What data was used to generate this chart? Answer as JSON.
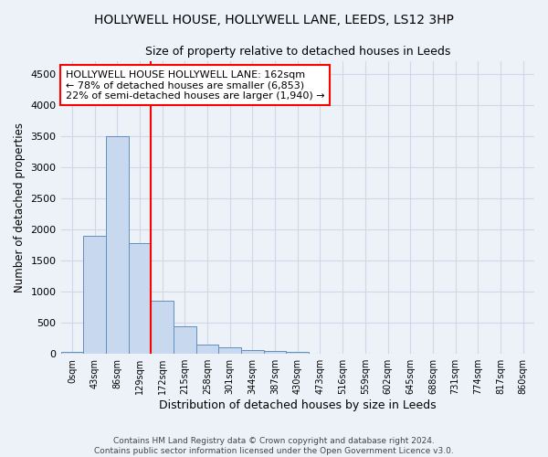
{
  "title": "HOLLYWELL HOUSE, HOLLYWELL LANE, LEEDS, LS12 3HP",
  "subtitle": "Size of property relative to detached houses in Leeds",
  "xlabel": "Distribution of detached houses by size in Leeds",
  "ylabel": "Number of detached properties",
  "bin_labels": [
    "0sqm",
    "43sqm",
    "86sqm",
    "129sqm",
    "172sqm",
    "215sqm",
    "258sqm",
    "301sqm",
    "344sqm",
    "387sqm",
    "430sqm",
    "473sqm",
    "516sqm",
    "559sqm",
    "602sqm",
    "645sqm",
    "688sqm",
    "731sqm",
    "774sqm",
    "817sqm",
    "860sqm"
  ],
  "bar_values": [
    30,
    1900,
    3500,
    1780,
    850,
    450,
    155,
    100,
    55,
    40,
    30,
    0,
    0,
    0,
    0,
    0,
    0,
    0,
    0,
    0,
    0
  ],
  "bar_color": "#c8d8ee",
  "bar_edge_color": "#6090c0",
  "vline_position": 3.5,
  "vline_color": "red",
  "annotation_text": "HOLLYWELL HOUSE HOLLYWELL LANE: 162sqm\n← 78% of detached houses are smaller (6,853)\n22% of semi-detached houses are larger (1,940) →",
  "annotation_box_color": "white",
  "annotation_box_edge": "red",
  "ylim": [
    0,
    4700
  ],
  "yticks": [
    0,
    500,
    1000,
    1500,
    2000,
    2500,
    3000,
    3500,
    4000,
    4500
  ],
  "background_color": "#edf2f9",
  "grid_color": "#d0d8e8",
  "footer1": "Contains HM Land Registry data © Crown copyright and database right 2024.",
  "footer2": "Contains public sector information licensed under the Open Government Licence v3.0."
}
